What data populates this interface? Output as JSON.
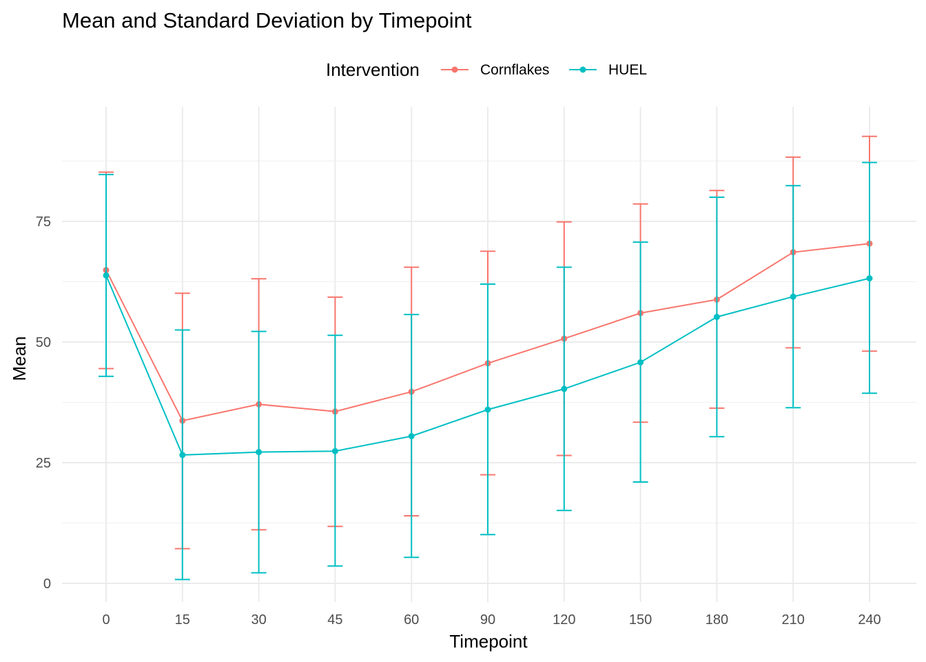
{
  "chart_data": {
    "type": "line",
    "title": "Mean and Standard Deviation by Timepoint",
    "xlabel": "Timepoint",
    "ylabel": "Mean",
    "legend_title": "Intervention",
    "legend_position": "top",
    "grid": true,
    "ylim": [
      -4,
      97
    ],
    "y_ticks": [
      "0",
      "25",
      "50",
      "75"
    ],
    "categories": [
      "0",
      "15",
      "30",
      "45",
      "60",
      "90",
      "120",
      "150",
      "180",
      "210",
      "240"
    ],
    "series": [
      {
        "name": "Cornflakes",
        "color": "#F8766D",
        "values": [
          64.9,
          33.7,
          37.1,
          35.6,
          39.7,
          45.6,
          50.7,
          56.0,
          58.8,
          68.6,
          70.4
        ],
        "lower": [
          44.5,
          7.2,
          11.1,
          11.8,
          14.0,
          22.5,
          26.5,
          33.4,
          36.3,
          48.8,
          48.1
        ],
        "upper": [
          85.2,
          60.1,
          63.1,
          59.3,
          65.5,
          68.8,
          74.9,
          78.6,
          81.4,
          88.3,
          92.6
        ]
      },
      {
        "name": "HUEL",
        "color": "#00BFC4",
        "values": [
          63.8,
          26.6,
          27.2,
          27.4,
          30.5,
          36.0,
          40.3,
          45.8,
          55.2,
          59.4,
          63.2
        ],
        "lower": [
          42.9,
          0.8,
          2.2,
          3.6,
          5.4,
          10.1,
          15.1,
          21.0,
          30.4,
          36.4,
          39.4
        ],
        "upper": [
          84.7,
          52.5,
          52.2,
          51.4,
          55.7,
          62.0,
          65.5,
          70.7,
          80.0,
          82.4,
          87.2
        ]
      }
    ]
  }
}
